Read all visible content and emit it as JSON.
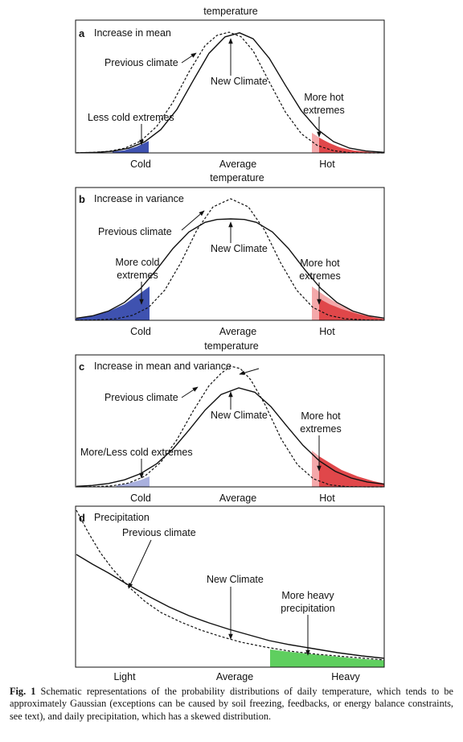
{
  "panels": [
    {
      "letter": "a",
      "title": "Increase in mean",
      "top_label": "temperature",
      "labels": [
        "Previous climate",
        "New Climate",
        "Less cold extremes",
        "More hot",
        "extremes"
      ],
      "axis": [
        "Cold",
        "Average",
        "Hot"
      ]
    },
    {
      "letter": "b",
      "title": "Increase in variance",
      "top_label": "temperature",
      "labels": [
        "Previous climate",
        "New Climate",
        "More cold",
        "extremes",
        "More hot",
        "extremes"
      ],
      "axis": [
        "Cold",
        "Average",
        "Hot"
      ]
    },
    {
      "letter": "c",
      "title": "Increase in mean and variance",
      "top_label": "temperature",
      "labels": [
        "Previous climate",
        "New Climate",
        "More/Less cold extremes",
        "More hot",
        "extremes"
      ],
      "axis": [
        "Cold",
        "Average",
        "Hot"
      ]
    },
    {
      "letter": "d",
      "title": "Precipitation",
      "labels": [
        "Previous climate",
        "New Climate",
        "More heavy",
        "precipitation"
      ],
      "axis": [
        "Light",
        "Average",
        "Heavy"
      ]
    }
  ],
  "caption": {
    "label": "Fig. 1",
    "text": "Schematic representations of the probability distributions of daily temperature, which tends to be approximately Gaussian (exceptions can be caused by soil freezing, feedbacks, or energy balance constraints, see text), and daily precipitation, which has a skewed distribution."
  },
  "colors": {
    "cold_shade": "#3f52b0",
    "cold_light": "#a9b0de",
    "hot_shade": "#e0474a",
    "hot_light": "#f4a8aa",
    "heavy_shade": "#5fcf5f"
  }
}
